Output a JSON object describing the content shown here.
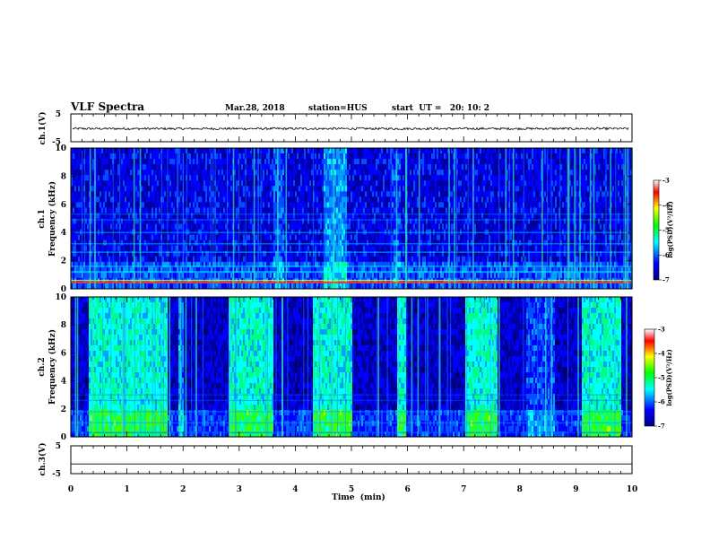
{
  "header": {
    "title": "VLF Spectra",
    "date": "Mar.28, 2018",
    "station": "station=HUS",
    "start": "start  UT =   20: 10: 2"
  },
  "chart_data": [
    {
      "type": "line",
      "name": "ch1-waveform",
      "ylabel": "ch.1(V)",
      "ylim": [
        -5,
        5
      ],
      "ytick_labels": [
        "5",
        "-5"
      ],
      "level": -0.3,
      "amplitude": 0.4
    },
    {
      "type": "heatmap",
      "name": "ch1-spectrogram",
      "ylabel_top": "ch.1",
      "ylabel": "Frequency (kHz)",
      "ylim": [
        0,
        10
      ],
      "yticks": [
        "0",
        "2",
        "4",
        "6",
        "8",
        "10"
      ],
      "colorbar": {
        "label": "log(PSD)(V²/Hz)",
        "range": [
          -7,
          -3
        ],
        "ticks": [
          "-3",
          "-4",
          "-5",
          "-6",
          "-7"
        ]
      }
    },
    {
      "type": "heatmap",
      "name": "ch2-spectrogram",
      "ylabel_top": "ch.2",
      "ylabel": "Frequency (kHz)",
      "ylim": [
        0,
        10
      ],
      "yticks": [
        "0",
        "2",
        "4",
        "6",
        "8",
        "10"
      ],
      "colorbar": {
        "label": "log(PSD)(V²/Hz)",
        "range": [
          -7,
          -3
        ],
        "ticks": [
          "-3",
          "-4",
          "-5",
          "-6",
          "-7"
        ]
      }
    },
    {
      "type": "line",
      "name": "ch3-waveform",
      "ylabel": "ch.3(V)",
      "ylim": [
        -5,
        5
      ],
      "ytick_labels": [
        "5",
        "-5"
      ],
      "level": -1.5
    }
  ],
  "xaxis": {
    "label": "Time  (min)",
    "range": [
      0,
      10
    ],
    "ticks": [
      "0",
      "1",
      "2",
      "3",
      "4",
      "5",
      "6",
      "7",
      "8",
      "9",
      "10"
    ]
  },
  "colors": {
    "colormap": [
      "#000080",
      "#0000ff",
      "#00ffff",
      "#00ff00",
      "#ffff00",
      "#ff0000",
      "#ffffff"
    ]
  }
}
